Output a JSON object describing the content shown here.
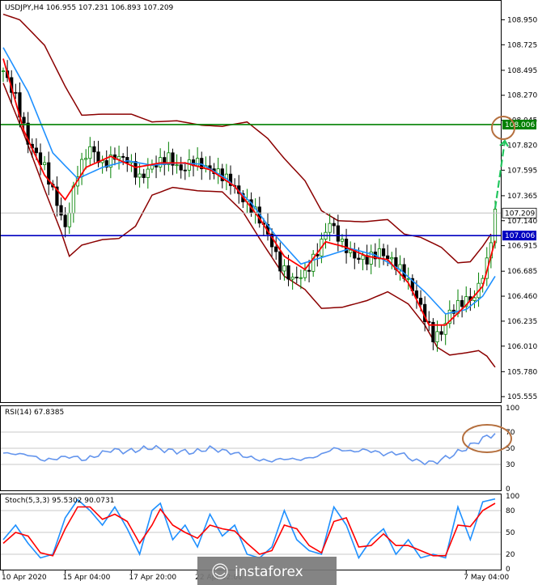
{
  "chart_data": [
    {
      "type": "candlestick",
      "title": "USDJPY,H4  106.955 107.231 106.893 107.209",
      "symbol": "USDJPY,H4",
      "ohlc_readout": "106.955 107.231 106.893 107.209",
      "price_ticks": [
        "108.950",
        "108.725",
        "108.495",
        "108.270",
        "108.045",
        "107.820",
        "107.595",
        "107.365",
        "107.140",
        "106.915",
        "106.685",
        "106.460",
        "106.235",
        "106.010",
        "105.780",
        "105.555"
      ],
      "price_tick_values": [
        108.95,
        108.725,
        108.495,
        108.27,
        108.045,
        107.82,
        107.595,
        107.365,
        107.14,
        106.915,
        106.685,
        106.46,
        106.235,
        106.01,
        105.78,
        105.555
      ],
      "ylim": [
        105.52,
        109.07
      ],
      "current_price": {
        "label": "107.209",
        "value": 107.209
      },
      "levels": [
        {
          "label": "108.006",
          "value": 108.006,
          "color": "#008000"
        },
        {
          "label": "107.006",
          "value": 107.006,
          "color": "#0000c0"
        }
      ],
      "x_labels": [
        "10 Apr 2020",
        "15 Apr 04:00",
        "17 Apr 20:00",
        "22 Apr 12:00",
        "7 May 04:00"
      ],
      "x_label_bar_index": [
        0,
        15,
        31,
        47,
        112
      ],
      "bar_count": 120,
      "close_path": [
        [
          0,
          108.49
        ],
        [
          3,
          108.25
        ],
        [
          6,
          107.85
        ],
        [
          10,
          107.62
        ],
        [
          13,
          107.3
        ],
        [
          15,
          107.07
        ],
        [
          18,
          107.58
        ],
        [
          21,
          107.8
        ],
        [
          24,
          107.64
        ],
        [
          27,
          107.72
        ],
        [
          30,
          107.69
        ],
        [
          33,
          107.52
        ],
        [
          36,
          107.63
        ],
        [
          40,
          107.71
        ],
        [
          43,
          107.59
        ],
        [
          46,
          107.68
        ],
        [
          49,
          107.62
        ],
        [
          52,
          107.57
        ],
        [
          55,
          107.49
        ],
        [
          58,
          107.33
        ],
        [
          61,
          107.22
        ],
        [
          64,
          107.02
        ],
        [
          67,
          106.73
        ],
        [
          70,
          106.61
        ],
        [
          73,
          106.66
        ],
        [
          76,
          106.86
        ],
        [
          79,
          107.13
        ],
        [
          82,
          106.93
        ],
        [
          85,
          106.81
        ],
        [
          88,
          106.79
        ],
        [
          91,
          106.86
        ],
        [
          94,
          106.78
        ],
        [
          97,
          106.66
        ],
        [
          100,
          106.45
        ],
        [
          102,
          106.27
        ],
        [
          104,
          106.09
        ],
        [
          106,
          106.13
        ],
        [
          108,
          106.31
        ],
        [
          111,
          106.41
        ],
        [
          114,
          106.45
        ],
        [
          117,
          106.76
        ],
        [
          119,
          107.21
        ]
      ],
      "ma_fast_path": [
        [
          0,
          108.6
        ],
        [
          5,
          107.95
        ],
        [
          10,
          107.55
        ],
        [
          15,
          107.33
        ],
        [
          20,
          107.62
        ],
        [
          26,
          107.72
        ],
        [
          32,
          107.62
        ],
        [
          38,
          107.66
        ],
        [
          44,
          107.66
        ],
        [
          50,
          107.6
        ],
        [
          56,
          107.45
        ],
        [
          62,
          107.16
        ],
        [
          68,
          106.82
        ],
        [
          73,
          106.7
        ],
        [
          78,
          106.95
        ],
        [
          83,
          106.9
        ],
        [
          88,
          106.82
        ],
        [
          93,
          106.79
        ],
        [
          98,
          106.58
        ],
        [
          103,
          106.2
        ],
        [
          107,
          106.2
        ],
        [
          112,
          106.38
        ],
        [
          116,
          106.55
        ],
        [
          119,
          106.96
        ]
      ],
      "ma_slow_path": [
        [
          0,
          108.7
        ],
        [
          6,
          108.3
        ],
        [
          12,
          107.75
        ],
        [
          18,
          107.52
        ],
        [
          24,
          107.62
        ],
        [
          30,
          107.68
        ],
        [
          36,
          107.64
        ],
        [
          42,
          107.66
        ],
        [
          48,
          107.65
        ],
        [
          54,
          107.52
        ],
        [
          60,
          107.3
        ],
        [
          66,
          107.0
        ],
        [
          72,
          106.75
        ],
        [
          78,
          106.82
        ],
        [
          84,
          106.89
        ],
        [
          90,
          106.83
        ],
        [
          96,
          106.7
        ],
        [
          102,
          106.5
        ],
        [
          107,
          106.3
        ],
        [
          112,
          106.34
        ],
        [
          116,
          106.46
        ],
        [
          119,
          106.64
        ]
      ],
      "band_upper_path": [
        [
          0,
          109.0
        ],
        [
          4,
          108.95
        ],
        [
          10,
          108.72
        ],
        [
          15,
          108.35
        ],
        [
          19,
          108.09
        ],
        [
          24,
          108.1
        ],
        [
          31,
          108.1
        ],
        [
          36,
          108.03
        ],
        [
          42,
          108.04
        ],
        [
          48,
          108.0
        ],
        [
          53,
          107.99
        ],
        [
          59,
          108.03
        ],
        [
          64,
          107.88
        ],
        [
          68,
          107.7
        ],
        [
          73,
          107.5
        ],
        [
          77,
          107.23
        ],
        [
          81,
          107.14
        ],
        [
          87,
          107.13
        ],
        [
          93,
          107.15
        ],
        [
          97,
          107.02
        ],
        [
          101,
          106.99
        ],
        [
          106,
          106.9
        ],
        [
          110,
          106.76
        ],
        [
          113,
          106.77
        ],
        [
          116,
          106.91
        ],
        [
          118,
          107.02
        ]
      ],
      "band_lower_path": [
        [
          0,
          108.38
        ],
        [
          5,
          107.92
        ],
        [
          10,
          107.42
        ],
        [
          14,
          107.04
        ],
        [
          16,
          106.82
        ],
        [
          19,
          106.92
        ],
        [
          24,
          106.97
        ],
        [
          28,
          106.98
        ],
        [
          32,
          107.09
        ],
        [
          36,
          107.37
        ],
        [
          41,
          107.44
        ],
        [
          47,
          107.41
        ],
        [
          53,
          107.4
        ],
        [
          58,
          107.22
        ],
        [
          62,
          106.98
        ],
        [
          68,
          106.64
        ],
        [
          73,
          106.52
        ],
        [
          77,
          106.35
        ],
        [
          82,
          106.36
        ],
        [
          88,
          106.42
        ],
        [
          93,
          106.5
        ],
        [
          98,
          106.39
        ],
        [
          102,
          106.2
        ],
        [
          105,
          106.0
        ],
        [
          108,
          105.93
        ],
        [
          112,
          105.95
        ],
        [
          115,
          105.97
        ],
        [
          117,
          105.92
        ],
        [
          119,
          105.82
        ]
      ],
      "annotations": [
        "target-circle",
        "up-arrow"
      ]
    },
    {
      "type": "line",
      "title": "RSI(14) 67.8385",
      "ticks": [
        "100",
        "70",
        "50",
        "30",
        "0"
      ],
      "tick_values": [
        100,
        70,
        50,
        30,
        0
      ],
      "ylim": [
        0,
        100
      ],
      "values_path": [
        [
          0,
          44
        ],
        [
          6,
          42
        ],
        [
          10,
          35
        ],
        [
          16,
          40
        ],
        [
          20,
          36
        ],
        [
          26,
          48
        ],
        [
          30,
          46
        ],
        [
          36,
          51
        ],
        [
          40,
          47
        ],
        [
          46,
          45
        ],
        [
          50,
          50
        ],
        [
          56,
          44
        ],
        [
          60,
          38
        ],
        [
          64,
          34
        ],
        [
          68,
          37
        ],
        [
          72,
          36
        ],
        [
          76,
          40
        ],
        [
          80,
          50
        ],
        [
          84,
          46
        ],
        [
          88,
          48
        ],
        [
          92,
          43
        ],
        [
          96,
          44
        ],
        [
          100,
          34
        ],
        [
          104,
          32
        ],
        [
          108,
          40
        ],
        [
          112,
          50
        ],
        [
          116,
          62
        ],
        [
          119,
          68
        ]
      ],
      "annotations": [
        "rsi-circle"
      ]
    },
    {
      "type": "line",
      "title": "Stoch(5,3,3) 95.5302 90.0731",
      "ticks": [
        "100",
        "80",
        "50",
        "20",
        "0"
      ],
      "tick_values": [
        100,
        80,
        50,
        20,
        0
      ],
      "ylim": [
        0,
        100
      ],
      "main_path": [
        [
          0,
          40
        ],
        [
          3,
          60
        ],
        [
          6,
          35
        ],
        [
          9,
          15
        ],
        [
          12,
          20
        ],
        [
          15,
          70
        ],
        [
          18,
          95
        ],
        [
          21,
          80
        ],
        [
          24,
          60
        ],
        [
          27,
          85
        ],
        [
          30,
          55
        ],
        [
          33,
          20
        ],
        [
          36,
          80
        ],
        [
          38,
          90
        ],
        [
          41,
          40
        ],
        [
          44,
          60
        ],
        [
          47,
          30
        ],
        [
          50,
          75
        ],
        [
          53,
          45
        ],
        [
          56,
          60
        ],
        [
          59,
          20
        ],
        [
          62,
          15
        ],
        [
          65,
          30
        ],
        [
          68,
          80
        ],
        [
          71,
          40
        ],
        [
          74,
          25
        ],
        [
          77,
          20
        ],
        [
          80,
          85
        ],
        [
          83,
          60
        ],
        [
          86,
          15
        ],
        [
          89,
          40
        ],
        [
          92,
          55
        ],
        [
          95,
          20
        ],
        [
          98,
          40
        ],
        [
          101,
          15
        ],
        [
          104,
          20
        ],
        [
          107,
          15
        ],
        [
          110,
          85
        ],
        [
          113,
          40
        ],
        [
          116,
          92
        ],
        [
          119,
          96
        ]
      ],
      "signal_path": [
        [
          0,
          35
        ],
        [
          3,
          50
        ],
        [
          6,
          45
        ],
        [
          9,
          22
        ],
        [
          12,
          18
        ],
        [
          15,
          55
        ],
        [
          18,
          85
        ],
        [
          21,
          85
        ],
        [
          24,
          68
        ],
        [
          27,
          75
        ],
        [
          30,
          65
        ],
        [
          33,
          35
        ],
        [
          36,
          60
        ],
        [
          38,
          82
        ],
        [
          41,
          60
        ],
        [
          44,
          50
        ],
        [
          47,
          42
        ],
        [
          50,
          60
        ],
        [
          53,
          55
        ],
        [
          56,
          52
        ],
        [
          59,
          35
        ],
        [
          62,
          20
        ],
        [
          65,
          25
        ],
        [
          68,
          60
        ],
        [
          71,
          55
        ],
        [
          74,
          32
        ],
        [
          77,
          22
        ],
        [
          80,
          65
        ],
        [
          83,
          70
        ],
        [
          86,
          30
        ],
        [
          89,
          32
        ],
        [
          92,
          48
        ],
        [
          95,
          32
        ],
        [
          98,
          32
        ],
        [
          101,
          25
        ],
        [
          104,
          18
        ],
        [
          107,
          18
        ],
        [
          110,
          60
        ],
        [
          113,
          58
        ],
        [
          116,
          80
        ],
        [
          119,
          90
        ]
      ]
    }
  ],
  "colors": {
    "bull": "#008000",
    "bear": "#000000",
    "ma_fast": "#ff0000",
    "ma_slow": "#1e90ff",
    "band": "#8b0000",
    "rsi": "#6495ed",
    "stoch_main": "#1e90ff",
    "stoch_signal": "#ff0000",
    "arrow": "#22c55e",
    "circle": "#b5703f"
  },
  "watermark": "instaforex"
}
